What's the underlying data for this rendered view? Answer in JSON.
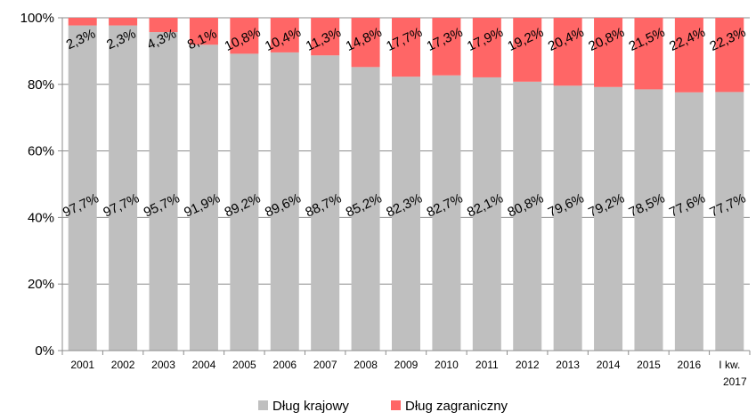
{
  "chart_data": {
    "type": "bar",
    "stacked": true,
    "categories": [
      "2001",
      "2002",
      "2003",
      "2004",
      "2005",
      "2006",
      "2007",
      "2008",
      "2009",
      "2010",
      "2011",
      "2012",
      "2013",
      "2014",
      "2015",
      "2016",
      "I kw. 2017"
    ],
    "series": [
      {
        "name": "Dług krajowy",
        "color": "#bfbfbf",
        "values": [
          97.7,
          97.7,
          95.7,
          91.9,
          89.2,
          89.6,
          88.7,
          85.2,
          82.3,
          82.7,
          82.1,
          80.8,
          79.6,
          79.2,
          78.5,
          77.6,
          77.7
        ],
        "labels": [
          "97,7%",
          "97,7%",
          "95,7%",
          "91,9%",
          "89,2%",
          "89,6%",
          "88,7%",
          "85,2%",
          "82,3%",
          "82,7%",
          "82,1%",
          "80,8%",
          "79,6%",
          "79,2%",
          "78,5%",
          "77,6%",
          "77,7%"
        ]
      },
      {
        "name": "Dług zagraniczny",
        "color": "#ff6666",
        "values": [
          2.3,
          2.3,
          4.3,
          8.1,
          10.8,
          10.4,
          11.3,
          14.8,
          17.7,
          17.3,
          17.9,
          19.2,
          20.4,
          20.8,
          21.5,
          22.4,
          22.3
        ],
        "labels": [
          "2,3%",
          "2,3%",
          "4,3%",
          "8,1%",
          "10,8%",
          "10,4%",
          "11,3%",
          "14,8%",
          "17,7%",
          "17,3%",
          "17,9%",
          "19,2%",
          "20,4%",
          "20,8%",
          "21,5%",
          "22,4%",
          "22,3%"
        ]
      }
    ],
    "y_ticks": [
      "0%",
      "20%",
      "40%",
      "60%",
      "80%",
      "100%"
    ],
    "ylim": [
      0,
      100
    ],
    "grid": true,
    "legend_position": "bottom",
    "title": "",
    "xlabel": "",
    "ylabel": ""
  }
}
